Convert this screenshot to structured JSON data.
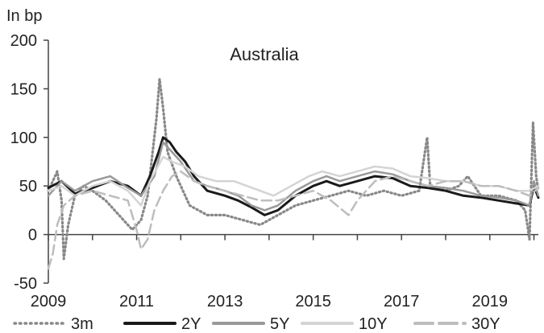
{
  "chart_data": {
    "type": "line",
    "title": "Australia",
    "ylabel": "In bp",
    "xlabel": "",
    "xlim": [
      2009,
      2020.1
    ],
    "ylim": [
      -50,
      200
    ],
    "yticks": [
      200,
      150,
      100,
      50,
      0,
      -50
    ],
    "xticks": [
      2009,
      2011,
      2013,
      2015,
      2017,
      2019
    ],
    "grid": false,
    "legend_position": "bottom",
    "series": [
      {
        "name": "3m",
        "color": "#888888",
        "style": "dotted",
        "points": [
          [
            2009.0,
            45
          ],
          [
            2009.1,
            55
          ],
          [
            2009.2,
            65
          ],
          [
            2009.3,
            35
          ],
          [
            2009.35,
            -25
          ],
          [
            2009.45,
            10
          ],
          [
            2009.6,
            40
          ],
          [
            2009.8,
            50
          ],
          [
            2010.0,
            45
          ],
          [
            2010.3,
            35
          ],
          [
            2010.6,
            20
          ],
          [
            2010.9,
            5
          ],
          [
            2011.1,
            15
          ],
          [
            2011.25,
            40
          ],
          [
            2011.35,
            80
          ],
          [
            2011.45,
            120
          ],
          [
            2011.52,
            160
          ],
          [
            2011.6,
            130
          ],
          [
            2011.7,
            85
          ],
          [
            2011.9,
            60
          ],
          [
            2012.2,
            30
          ],
          [
            2012.6,
            20
          ],
          [
            2013.0,
            20
          ],
          [
            2013.4,
            15
          ],
          [
            2013.8,
            10
          ],
          [
            2014.2,
            20
          ],
          [
            2014.6,
            30
          ],
          [
            2015.0,
            35
          ],
          [
            2015.4,
            40
          ],
          [
            2015.8,
            45
          ],
          [
            2016.2,
            40
          ],
          [
            2016.6,
            45
          ],
          [
            2017.0,
            40
          ],
          [
            2017.4,
            45
          ],
          [
            2017.58,
            100
          ],
          [
            2017.65,
            50
          ],
          [
            2018.0,
            45
          ],
          [
            2018.3,
            50
          ],
          [
            2018.5,
            60
          ],
          [
            2018.8,
            40
          ],
          [
            2019.2,
            40
          ],
          [
            2019.6,
            35
          ],
          [
            2019.8,
            25
          ],
          [
            2019.9,
            -5
          ],
          [
            2019.98,
            115
          ],
          [
            2020.05,
            60
          ],
          [
            2020.1,
            45
          ]
        ]
      },
      {
        "name": "2Y",
        "color": "#1a1a1a",
        "style": "solid",
        "points": [
          [
            2009.0,
            48
          ],
          [
            2009.3,
            55
          ],
          [
            2009.6,
            42
          ],
          [
            2010.0,
            48
          ],
          [
            2010.4,
            55
          ],
          [
            2010.8,
            50
          ],
          [
            2011.1,
            40
          ],
          [
            2011.3,
            60
          ],
          [
            2011.5,
            85
          ],
          [
            2011.6,
            100
          ],
          [
            2011.75,
            95
          ],
          [
            2011.9,
            85
          ],
          [
            2012.1,
            75
          ],
          [
            2012.3,
            60
          ],
          [
            2012.6,
            45
          ],
          [
            2013.0,
            40
          ],
          [
            2013.3,
            35
          ],
          [
            2013.6,
            28
          ],
          [
            2013.9,
            20
          ],
          [
            2014.2,
            25
          ],
          [
            2014.6,
            40
          ],
          [
            2015.0,
            50
          ],
          [
            2015.3,
            55
          ],
          [
            2015.6,
            50
          ],
          [
            2016.0,
            55
          ],
          [
            2016.4,
            60
          ],
          [
            2016.8,
            58
          ],
          [
            2017.2,
            50
          ],
          [
            2017.6,
            48
          ],
          [
            2018.0,
            45
          ],
          [
            2018.4,
            40
          ],
          [
            2018.8,
            38
          ],
          [
            2019.2,
            35
          ],
          [
            2019.6,
            32
          ],
          [
            2019.9,
            30
          ],
          [
            2020.0,
            50
          ],
          [
            2020.1,
            38
          ]
        ]
      },
      {
        "name": "5Y",
        "color": "#999999",
        "style": "solid",
        "points": [
          [
            2009.0,
            40
          ],
          [
            2009.3,
            55
          ],
          [
            2009.6,
            45
          ],
          [
            2010.0,
            55
          ],
          [
            2010.4,
            60
          ],
          [
            2010.8,
            48
          ],
          [
            2011.1,
            40
          ],
          [
            2011.4,
            60
          ],
          [
            2011.6,
            95
          ],
          [
            2011.8,
            85
          ],
          [
            2012.0,
            75
          ],
          [
            2012.3,
            55
          ],
          [
            2012.6,
            50
          ],
          [
            2013.0,
            45
          ],
          [
            2013.3,
            40
          ],
          [
            2013.6,
            30
          ],
          [
            2013.9,
            25
          ],
          [
            2014.2,
            30
          ],
          [
            2014.6,
            45
          ],
          [
            2015.0,
            55
          ],
          [
            2015.3,
            60
          ],
          [
            2015.6,
            55
          ],
          [
            2016.0,
            60
          ],
          [
            2016.4,
            65
          ],
          [
            2016.8,
            62
          ],
          [
            2017.2,
            55
          ],
          [
            2017.6,
            50
          ],
          [
            2018.0,
            48
          ],
          [
            2018.4,
            45
          ],
          [
            2018.8,
            40
          ],
          [
            2019.2,
            38
          ],
          [
            2019.6,
            35
          ],
          [
            2019.9,
            30
          ],
          [
            2020.0,
            55
          ],
          [
            2020.1,
            40
          ]
        ]
      },
      {
        "name": "10Y",
        "color": "#d4d4d4",
        "style": "solid",
        "points": [
          [
            2009.0,
            45
          ],
          [
            2009.3,
            50
          ],
          [
            2009.6,
            40
          ],
          [
            2010.0,
            50
          ],
          [
            2010.4,
            55
          ],
          [
            2010.8,
            45
          ],
          [
            2011.1,
            30
          ],
          [
            2011.3,
            55
          ],
          [
            2011.6,
            80
          ],
          [
            2011.8,
            75
          ],
          [
            2012.1,
            70
          ],
          [
            2012.4,
            60
          ],
          [
            2012.8,
            55
          ],
          [
            2013.2,
            55
          ],
          [
            2013.5,
            50
          ],
          [
            2013.8,
            45
          ],
          [
            2014.1,
            40
          ],
          [
            2014.5,
            50
          ],
          [
            2014.9,
            60
          ],
          [
            2015.2,
            65
          ],
          [
            2015.6,
            60
          ],
          [
            2016.0,
            65
          ],
          [
            2016.4,
            70
          ],
          [
            2016.8,
            68
          ],
          [
            2017.2,
            60
          ],
          [
            2017.6,
            58
          ],
          [
            2018.0,
            55
          ],
          [
            2018.4,
            55
          ],
          [
            2018.8,
            50
          ],
          [
            2019.2,
            50
          ],
          [
            2019.6,
            45
          ],
          [
            2019.9,
            45
          ],
          [
            2020.1,
            50
          ]
        ]
      },
      {
        "name": "30Y",
        "color": "#bdbdbd",
        "style": "dashed",
        "points": [
          [
            2009.0,
            -35
          ],
          [
            2009.1,
            -20
          ],
          [
            2009.2,
            10
          ],
          [
            2009.35,
            30
          ],
          [
            2009.6,
            40
          ],
          [
            2010.0,
            45
          ],
          [
            2010.4,
            40
          ],
          [
            2010.8,
            35
          ],
          [
            2011.0,
            5
          ],
          [
            2011.1,
            -15
          ],
          [
            2011.25,
            -5
          ],
          [
            2011.4,
            25
          ],
          [
            2011.6,
            45
          ],
          [
            2011.8,
            60
          ],
          [
            2012.0,
            65
          ],
          [
            2012.3,
            55
          ],
          [
            2012.6,
            50
          ],
          [
            2013.0,
            45
          ],
          [
            2013.4,
            40
          ],
          [
            2013.8,
            35
          ],
          [
            2014.2,
            35
          ],
          [
            2014.6,
            40
          ],
          [
            2015.0,
            45
          ],
          [
            2015.4,
            35
          ],
          [
            2015.8,
            20
          ],
          [
            2016.0,
            35
          ],
          [
            2016.4,
            55
          ],
          [
            2016.8,
            60
          ],
          [
            2017.2,
            55
          ],
          [
            2017.6,
            50
          ],
          [
            2018.0,
            55
          ],
          [
            2018.4,
            55
          ],
          [
            2018.8,
            50
          ],
          [
            2019.2,
            50
          ],
          [
            2019.6,
            45
          ],
          [
            2019.9,
            40
          ],
          [
            2020.1,
            48
          ]
        ]
      }
    ]
  }
}
